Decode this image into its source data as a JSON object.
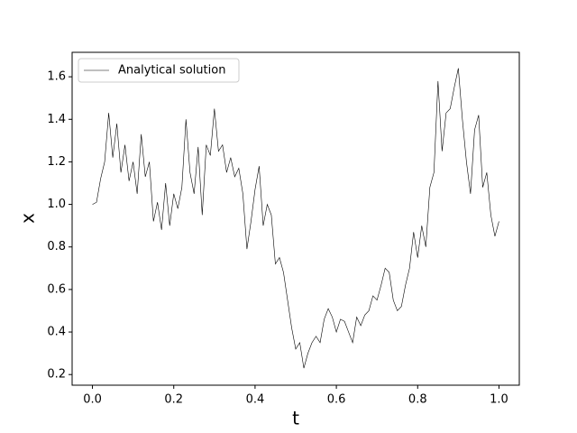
{
  "chart_data": {
    "type": "line",
    "xlabel": "t",
    "ylabel": "x",
    "x": [
      0.0,
      0.01,
      0.02,
      0.03,
      0.04,
      0.05,
      0.06,
      0.07,
      0.08,
      0.09,
      0.1,
      0.11,
      0.12,
      0.13,
      0.14,
      0.15,
      0.16,
      0.17,
      0.18,
      0.19,
      0.2,
      0.21,
      0.22,
      0.23,
      0.24,
      0.25,
      0.26,
      0.27,
      0.28,
      0.29,
      0.3,
      0.31,
      0.32,
      0.33,
      0.34,
      0.35,
      0.36,
      0.37,
      0.38,
      0.39,
      0.4,
      0.41,
      0.42,
      0.43,
      0.44,
      0.45,
      0.46,
      0.47,
      0.48,
      0.49,
      0.5,
      0.51,
      0.52,
      0.53,
      0.54,
      0.55,
      0.56,
      0.57,
      0.58,
      0.59,
      0.6,
      0.61,
      0.62,
      0.63,
      0.64,
      0.65,
      0.66,
      0.67,
      0.68,
      0.69,
      0.7,
      0.71,
      0.72,
      0.73,
      0.74,
      0.75,
      0.76,
      0.77,
      0.78,
      0.79,
      0.8,
      0.81,
      0.82,
      0.83,
      0.84,
      0.85,
      0.86,
      0.87,
      0.88,
      0.89,
      0.9,
      0.91,
      0.92,
      0.93,
      0.94,
      0.95,
      0.96,
      0.97,
      0.98,
      0.99,
      1.0
    ],
    "series": [
      {
        "name": "Analytical solution",
        "color": "#000000",
        "values": [
          1.0,
          1.01,
          1.12,
          1.2,
          1.43,
          1.22,
          1.38,
          1.15,
          1.28,
          1.11,
          1.2,
          1.05,
          1.33,
          1.13,
          1.2,
          0.92,
          1.01,
          0.88,
          1.1,
          0.9,
          1.05,
          0.98,
          1.08,
          1.4,
          1.15,
          1.05,
          1.27,
          0.95,
          1.28,
          1.23,
          1.45,
          1.25,
          1.28,
          1.15,
          1.22,
          1.13,
          1.17,
          1.05,
          0.79,
          0.92,
          1.07,
          1.18,
          0.9,
          1.0,
          0.95,
          0.72,
          0.75,
          0.68,
          0.55,
          0.42,
          0.32,
          0.35,
          0.23,
          0.3,
          0.35,
          0.38,
          0.35,
          0.46,
          0.51,
          0.47,
          0.4,
          0.46,
          0.45,
          0.4,
          0.35,
          0.47,
          0.43,
          0.48,
          0.5,
          0.57,
          0.55,
          0.62,
          0.7,
          0.68,
          0.55,
          0.5,
          0.52,
          0.62,
          0.7,
          0.87,
          0.75,
          0.9,
          0.8,
          1.08,
          1.15,
          1.58,
          1.25,
          1.43,
          1.45,
          1.55,
          1.64,
          1.4,
          1.2,
          1.05,
          1.35,
          1.42,
          1.08,
          1.15,
          0.95,
          0.85,
          0.92
        ]
      }
    ],
    "xlim": [
      -0.05,
      1.05
    ],
    "ylim": [
      0.15,
      1.715
    ],
    "xticks": [
      {
        "value": 0,
        "label": "0.0"
      },
      0.2,
      0.4,
      0.6,
      0.8,
      {
        "value": 1,
        "label": "1.0"
      }
    ],
    "yticks": [
      0.2,
      0.4,
      0.6,
      0.8,
      {
        "value": 1,
        "label": "1.0"
      },
      1.2,
      1.4,
      1.6
    ],
    "legend": "upper left"
  }
}
